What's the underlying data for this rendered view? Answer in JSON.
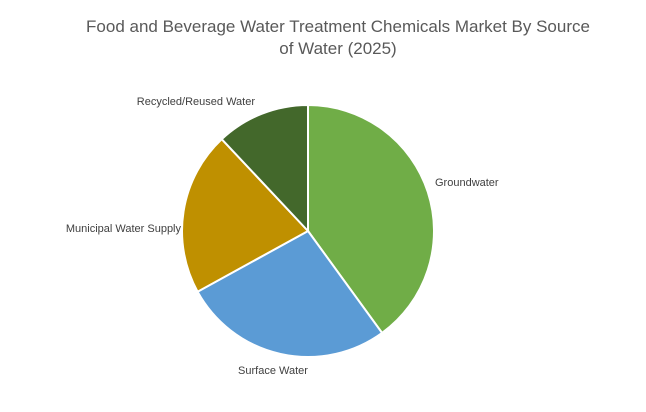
{
  "chart_data": {
    "type": "pie",
    "title_line1": "Food and Beverage Water Treatment Chemicals Market By Source",
    "title_line2": "of Water (2025)",
    "categories": [
      "Groundwater",
      "Surface Water",
      "Municipal Water Supply",
      "Recycled/Reused Water"
    ],
    "values": [
      40,
      27,
      21,
      12
    ],
    "colors": [
      "#70AD47",
      "#5B9BD5",
      "#BF9000",
      "#43682B"
    ],
    "legend": "none",
    "data_labels": "category-name-outside"
  }
}
